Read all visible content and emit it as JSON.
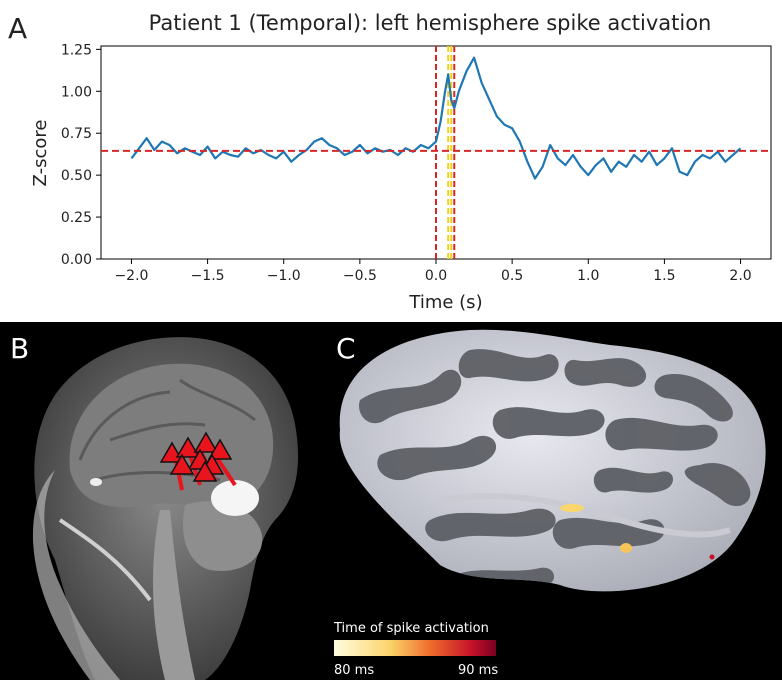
{
  "panels": {
    "a": {
      "letter": "A"
    },
    "b": {
      "letter": "B"
    },
    "c": {
      "letter": "C"
    }
  },
  "chart_data": {
    "type": "line",
    "title": "Patient 1 (Temporal): left hemisphere spike activation",
    "xlabel": "Time (s)",
    "ylabel": "Z-score",
    "xlim": [
      -2.2,
      2.2
    ],
    "ylim": [
      0.0,
      1.27
    ],
    "xticks": [
      -2.0,
      -1.5,
      -1.0,
      -0.5,
      0.0,
      0.5,
      1.0,
      1.5,
      2.0
    ],
    "xtick_labels": [
      "−2.0",
      "−1.5",
      "−1.0",
      "−0.5",
      "0.0",
      "0.5",
      "1.0",
      "1.5",
      "2.0"
    ],
    "yticks": [
      0.0,
      0.25,
      0.5,
      0.75,
      1.0,
      1.25
    ],
    "ytick_labels": [
      "0.00",
      "0.25",
      "0.50",
      "0.75",
      "1.00",
      "1.25"
    ],
    "grid": false,
    "threshold": 0.645,
    "vlines_red": [
      0.0,
      0.12
    ],
    "vlines_yellow": [
      0.08,
      0.1
    ],
    "series": [
      {
        "color": "#1f77b4",
        "x": [
          -2.0,
          -1.95,
          -1.9,
          -1.85,
          -1.8,
          -1.75,
          -1.7,
          -1.65,
          -1.6,
          -1.55,
          -1.5,
          -1.45,
          -1.4,
          -1.35,
          -1.3,
          -1.25,
          -1.2,
          -1.15,
          -1.1,
          -1.05,
          -1.0,
          -0.95,
          -0.9,
          -0.85,
          -0.8,
          -0.75,
          -0.7,
          -0.65,
          -0.6,
          -0.55,
          -0.5,
          -0.45,
          -0.4,
          -0.35,
          -0.3,
          -0.25,
          -0.2,
          -0.15,
          -0.1,
          -0.05,
          0.0,
          0.03,
          0.06,
          0.08,
          0.1,
          0.12,
          0.15,
          0.2,
          0.25,
          0.3,
          0.35,
          0.4,
          0.45,
          0.5,
          0.55,
          0.6,
          0.65,
          0.7,
          0.75,
          0.8,
          0.85,
          0.9,
          0.95,
          1.0,
          1.05,
          1.1,
          1.15,
          1.2,
          1.25,
          1.3,
          1.35,
          1.4,
          1.45,
          1.5,
          1.55,
          1.6,
          1.65,
          1.7,
          1.75,
          1.8,
          1.85,
          1.9,
          1.95,
          2.0
        ],
        "y": [
          0.6,
          0.66,
          0.72,
          0.65,
          0.7,
          0.68,
          0.63,
          0.66,
          0.64,
          0.62,
          0.67,
          0.6,
          0.64,
          0.62,
          0.61,
          0.66,
          0.63,
          0.65,
          0.62,
          0.6,
          0.64,
          0.58,
          0.62,
          0.65,
          0.7,
          0.72,
          0.68,
          0.66,
          0.62,
          0.64,
          0.68,
          0.63,
          0.66,
          0.64,
          0.65,
          0.62,
          0.66,
          0.64,
          0.68,
          0.66,
          0.7,
          0.82,
          1.0,
          1.1,
          0.95,
          0.9,
          1.0,
          1.12,
          1.2,
          1.05,
          0.95,
          0.85,
          0.8,
          0.78,
          0.7,
          0.58,
          0.48,
          0.55,
          0.68,
          0.6,
          0.56,
          0.62,
          0.55,
          0.5,
          0.56,
          0.6,
          0.52,
          0.58,
          0.55,
          0.62,
          0.58,
          0.64,
          0.56,
          0.6,
          0.66,
          0.52,
          0.5,
          0.58,
          0.62,
          0.6,
          0.64,
          0.58,
          0.62,
          0.66
        ]
      }
    ]
  },
  "colorbar": {
    "title": "Time of spike activation",
    "min_label": "80 ms",
    "max_label": "90 ms"
  }
}
